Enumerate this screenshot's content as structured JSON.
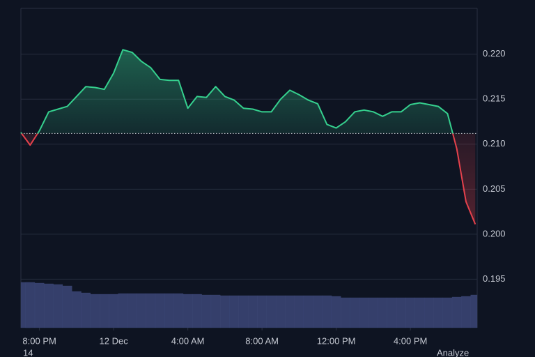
{
  "chart_data": {
    "type": "line",
    "x": [
      19,
      19.5,
      20,
      20.5,
      21,
      21.5,
      22,
      22.5,
      23,
      23.5,
      24,
      24.5,
      25,
      25.5,
      26,
      26.5,
      27,
      27.5,
      28,
      28.5,
      29,
      29.5,
      30,
      30.5,
      31,
      31.5,
      32,
      32.5,
      33,
      33.5,
      34,
      34.5,
      35,
      35.5,
      36,
      36.5,
      37,
      37.5,
      38,
      38.5,
      39,
      39.5,
      40,
      40.5,
      41,
      41.5,
      42,
      42.5,
      43,
      43.5
    ],
    "values": [
      0.2113,
      0.2099,
      0.2115,
      0.2136,
      0.2139,
      0.2142,
      0.2153,
      0.2164,
      0.2163,
      0.2161,
      0.2179,
      0.2205,
      0.2202,
      0.2192,
      0.2185,
      0.2172,
      0.2171,
      0.2171,
      0.214,
      0.2153,
      0.2152,
      0.2164,
      0.2153,
      0.2149,
      0.214,
      0.2139,
      0.2136,
      0.2136,
      0.215,
      0.216,
      0.2155,
      0.2149,
      0.2145,
      0.2122,
      0.2118,
      0.2125,
      0.2136,
      0.2138,
      0.2136,
      0.2131,
      0.2136,
      0.2136,
      0.2144,
      0.2146,
      0.2144,
      0.2142,
      0.2134,
      0.2095,
      0.2036,
      0.2011
    ],
    "volume": [
      65,
      65,
      64,
      63,
      62,
      60,
      52,
      50,
      48,
      48,
      48,
      49,
      49,
      49,
      49,
      49,
      49,
      49,
      48,
      48,
      47,
      47,
      46,
      46,
      46,
      46,
      46,
      46,
      46,
      46,
      46,
      46,
      46,
      46,
      45,
      43,
      43,
      43,
      43,
      43,
      43,
      43,
      43,
      43,
      43,
      43,
      43,
      44,
      45,
      47
    ],
    "reference_line": 0.2112,
    "color_up": "#35d08e",
    "color_down": "#e5414c",
    "volume_color": "#353f6b",
    "xlim": [
      19,
      43.6
    ],
    "ylim": [
      0.1896,
      0.2251
    ],
    "xticks": [
      {
        "value": 20,
        "label": "8:00 PM"
      },
      {
        "value": 24,
        "label": "12 Dec"
      },
      {
        "value": 28,
        "label": "4:00 AM"
      },
      {
        "value": 32,
        "label": "8:00 AM"
      },
      {
        "value": 36,
        "label": "12:00 PM"
      },
      {
        "value": 40,
        "label": "4:00 PM"
      }
    ],
    "yticks": [
      0.195,
      {
        "value": 0.2,
        "label": "0.200"
      },
      0.205,
      {
        "value": 0.21,
        "label": "0.210"
      },
      0.215,
      {
        "value": 0.22,
        "label": "0.220"
      }
    ],
    "grid": true,
    "footer_texts": [
      "14",
      "Analyze"
    ]
  }
}
